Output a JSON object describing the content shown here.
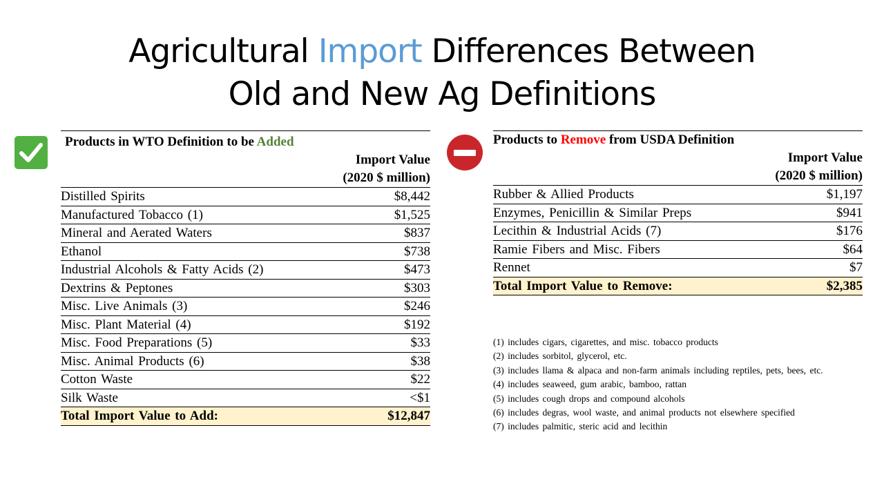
{
  "title": {
    "line1_pre": "Agricultural ",
    "line1_accent": "Import",
    "line1_post": " Differences Between",
    "line2": "Old and New Ag Definitions",
    "accent_color": "#5b9bd5"
  },
  "icons": {
    "check": "checkmark-icon",
    "remove": "no-entry-icon"
  },
  "left_table": {
    "heading_pre": "Products in WTO Definition to be ",
    "heading_highlight": "Added",
    "col_header_line1": "Import Value",
    "col_header_line2": "(2020 $ million)",
    "rows": [
      {
        "label": "Distilled Spirits",
        "value": "$8,442"
      },
      {
        "label": "Manufactured Tobacco (1)",
        "value": "$1,525"
      },
      {
        "label": "Mineral and Aerated Waters",
        "value": "$837"
      },
      {
        "label": "Ethanol",
        "value": "$738"
      },
      {
        "label": "Industrial Alcohols & Fatty Acids (2)",
        "value": "$473"
      },
      {
        "label": "Dextrins & Peptones",
        "value": "$303"
      },
      {
        "label": "Misc. Live Animals (3)",
        "value": "$246"
      },
      {
        "label": "Misc. Plant Material (4)",
        "value": "$192"
      },
      {
        "label": "Misc. Food Preparations (5)",
        "value": "$33"
      },
      {
        "label": "Misc. Animal Products (6)",
        "value": "$38"
      },
      {
        "label": "Cotton Waste",
        "value": "$22"
      },
      {
        "label": "Silk Waste",
        "value": "<$1"
      }
    ],
    "total_label": "Total Import Value to Add:",
    "total_value": "$12,847"
  },
  "right_table": {
    "heading_pre": "Products to ",
    "heading_highlight": "Remove",
    "heading_post": " from USDA Definition",
    "col_header_line1": "Import Value",
    "col_header_line2": "(2020 $ million)",
    "rows": [
      {
        "label": "Rubber & Allied Products",
        "value": "$1,197"
      },
      {
        "label": "Enzymes, Penicillin & Similar Preps",
        "value": "$941"
      },
      {
        "label": "Lecithin & Industrial Acids (7)",
        "value": "$176"
      },
      {
        "label": "Ramie Fibers and Misc. Fibers",
        "value": "$64"
      },
      {
        "label": "Rennet",
        "value": "$7"
      }
    ],
    "total_label": "Total Import Value to Remove:",
    "total_value": "$2,385"
  },
  "footnotes": [
    "(1) includes cigars, cigarettes, and misc. tobacco products",
    "(2) includes sorbitol, glycerol, etc.",
    "(3) includes llama & alpaca and non-farm animals including reptiles, pets, bees, etc.",
    "(4) includes seaweed, gum arabic, bamboo, rattan",
    "(5) includes cough drops and compound alcohols",
    "(6) includes degras, wool waste, and animal products not elsewhere specified",
    "(7) includes palmitic, steric acid and lecithin"
  ]
}
